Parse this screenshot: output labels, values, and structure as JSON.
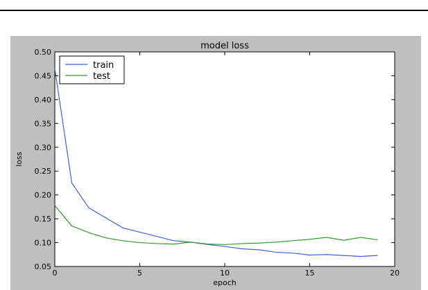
{
  "chart_data": {
    "type": "line",
    "title": "model loss",
    "xlabel": "epoch",
    "ylabel": "loss",
    "xlim": [
      0,
      20
    ],
    "ylim": [
      0.05,
      0.5
    ],
    "xticks": [
      0,
      5,
      10,
      15,
      20
    ],
    "yticks": [
      0.05,
      0.1,
      0.15,
      0.2,
      0.25,
      0.3,
      0.35,
      0.4,
      0.45,
      0.5
    ],
    "grid": false,
    "legend_position": "top-left",
    "x": [
      0,
      1,
      2,
      3,
      4,
      5,
      6,
      7,
      8,
      9,
      10,
      11,
      12,
      13,
      14,
      15,
      16,
      17,
      18,
      19
    ],
    "series": [
      {
        "name": "train",
        "color": "#3d5fd8",
        "values": [
          0.465,
          0.225,
          0.173,
          0.152,
          0.131,
          0.122,
          0.113,
          0.104,
          0.101,
          0.096,
          0.092,
          0.087,
          0.085,
          0.08,
          0.078,
          0.074,
          0.075,
          0.073,
          0.071,
          0.073
        ]
      },
      {
        "name": "test",
        "color": "#2e9a2e",
        "values": [
          0.178,
          0.135,
          0.121,
          0.11,
          0.104,
          0.1,
          0.098,
          0.097,
          0.101,
          0.097,
          0.096,
          0.098,
          0.099,
          0.101,
          0.104,
          0.107,
          0.111,
          0.105,
          0.111,
          0.106
        ]
      }
    ]
  }
}
